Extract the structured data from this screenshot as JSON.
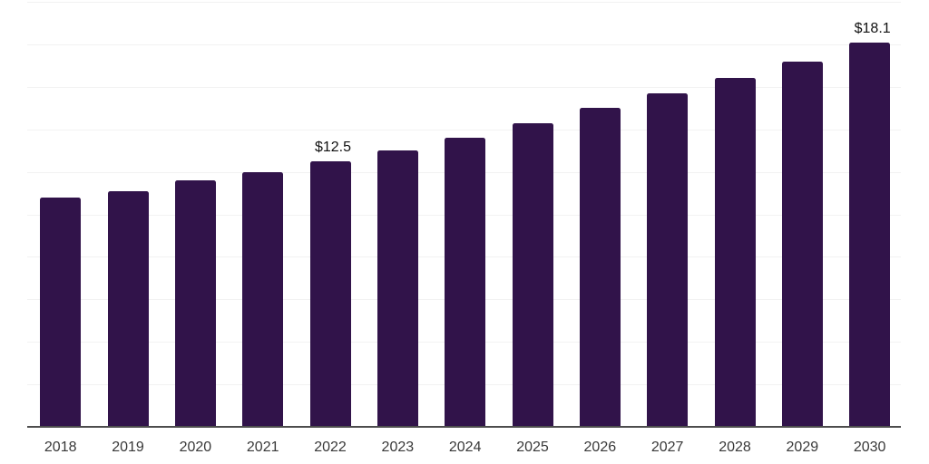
{
  "chart_data": {
    "type": "bar",
    "title": "",
    "xlabel": "",
    "ylabel": "",
    "categories": [
      "2018",
      "2019",
      "2020",
      "2021",
      "2022",
      "2023",
      "2024",
      "2025",
      "2026",
      "2027",
      "2028",
      "2029",
      "2030"
    ],
    "values": [
      10.8,
      11.1,
      11.6,
      12.0,
      12.5,
      13.0,
      13.6,
      14.3,
      15.0,
      15.7,
      16.4,
      17.2,
      18.1
    ],
    "data_labels": [
      {
        "category": "2022",
        "text": "$12.5"
      },
      {
        "category": "2030",
        "text": "$18.1"
      }
    ],
    "ylim": [
      0,
      20
    ],
    "grid_step": 2,
    "grid": true,
    "legend": false,
    "y_tick_labels_visible": false,
    "colors": {
      "bar": "#31134a",
      "gridline": "#f2f2f2",
      "axis_line": "#4d4d4d",
      "x_tick_label": "#383838",
      "data_label": "#111111",
      "background": "#ffffff"
    }
  }
}
